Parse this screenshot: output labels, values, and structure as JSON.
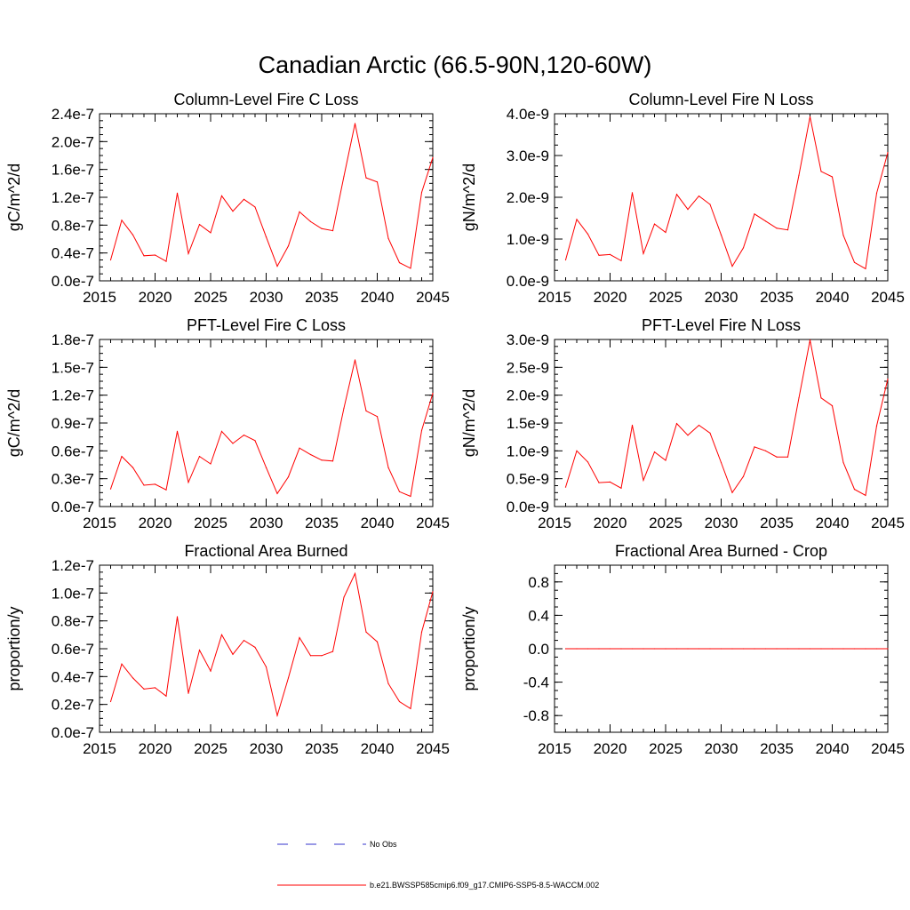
{
  "main_title": "Canadian Arctic (66.5-90N,120-60W)",
  "colors": {
    "series": "#ff0000",
    "no_obs": "#3333cc",
    "axis": "#000000"
  },
  "legend": {
    "no_obs_label": "No Obs",
    "series_label": "b.e21.BWSSP585cmip6.f09_g17.CMIP6-SSP5-8.5-WACCM.002"
  },
  "chart_data": [
    {
      "type": "line",
      "title": "Column-Level Fire C Loss",
      "ylabel": "gC/m^2/d",
      "xlabel": "",
      "xlim": [
        2015,
        2045
      ],
      "x_ticks": [
        2015,
        2020,
        2025,
        2030,
        2035,
        2040,
        2045
      ],
      "x_tick_labels": [
        "2015",
        "2020",
        "2025",
        "2030",
        "2035",
        "2040",
        "2045"
      ],
      "ylim": [
        0,
        2.4e-07
      ],
      "y_ticks": [
        0,
        4e-08,
        8e-08,
        1.2e-07,
        1.6e-07,
        2e-07,
        2.4e-07
      ],
      "y_tick_labels": [
        "0.0e-7",
        "0.4e-7",
        "0.8e-7",
        "1.2e-7",
        "1.6e-7",
        "2.0e-7",
        "2.4e-7"
      ],
      "x": [
        2016,
        2017,
        2018,
        2019,
        2020,
        2021,
        2022,
        2023,
        2024,
        2025,
        2026,
        2027,
        2028,
        2029,
        2030,
        2031,
        2032,
        2033,
        2034,
        2035,
        2036,
        2037,
        2038,
        2039,
        2040,
        2041,
        2042,
        2043,
        2044,
        2045
      ],
      "series": [
        {
          "name": "b.e21.BWSSP585cmip6.f09_g17.CMIP6-SSP5-8.5-WACCM.002",
          "values": [
            3e-08,
            8.7e-08,
            6.6e-08,
            3.6e-08,
            3.7e-08,
            2.8e-08,
            1.26e-07,
            3.9e-08,
            8.1e-08,
            6.9e-08,
            1.22e-07,
            1e-07,
            1.17e-07,
            1.06e-07,
            6.3e-08,
            2.1e-08,
            5e-08,
            9.9e-08,
            8.5e-08,
            7.5e-08,
            7.2e-08,
            1.5e-07,
            2.26e-07,
            1.48e-07,
            1.42e-07,
            6.1e-08,
            2.6e-08,
            1.8e-08,
            1.27e-07,
            1.77e-07
          ]
        }
      ]
    },
    {
      "type": "line",
      "title": "Column-Level Fire N Loss",
      "ylabel": "gN/m^2/d",
      "xlabel": "",
      "xlim": [
        2015,
        2045
      ],
      "x_ticks": [
        2015,
        2020,
        2025,
        2030,
        2035,
        2040,
        2045
      ],
      "x_tick_labels": [
        "2015",
        "2020",
        "2025",
        "2030",
        "2035",
        "2040",
        "2045"
      ],
      "ylim": [
        0,
        4e-09
      ],
      "y_ticks": [
        0,
        1e-09,
        2e-09,
        3e-09,
        4e-09
      ],
      "y_tick_labels": [
        "0.0e-9",
        "1.0e-9",
        "2.0e-9",
        "3.0e-9",
        "4.0e-9"
      ],
      "x": [
        2016,
        2017,
        2018,
        2019,
        2020,
        2021,
        2022,
        2023,
        2024,
        2025,
        2026,
        2027,
        2028,
        2029,
        2030,
        2031,
        2032,
        2033,
        2034,
        2035,
        2036,
        2037,
        2038,
        2039,
        2040,
        2041,
        2042,
        2043,
        2044,
        2045
      ],
      "series": [
        {
          "name": "b.e21.BWSSP585cmip6.f09_g17.CMIP6-SSP5-8.5-WACCM.002",
          "values": [
            5e-10,
            1.47e-09,
            1.12e-09,
            6.1e-10,
            6.3e-10,
            4.8e-10,
            2.11e-09,
            6.5e-10,
            1.36e-09,
            1.16e-09,
            2.07e-09,
            1.71e-09,
            2.03e-09,
            1.83e-09,
            1.1e-09,
            3.5e-10,
            7.9e-10,
            1.6e-09,
            1.43e-09,
            1.26e-09,
            1.22e-09,
            2.53e-09,
            3.93e-09,
            2.62e-09,
            2.49e-09,
            1.09e-09,
            4.4e-10,
            2.9e-10,
            2.1e-09,
            3.07e-09
          ]
        }
      ]
    },
    {
      "type": "line",
      "title": "PFT-Level Fire C Loss",
      "ylabel": "gC/m^2/d",
      "xlabel": "",
      "xlim": [
        2015,
        2045
      ],
      "x_ticks": [
        2015,
        2020,
        2025,
        2030,
        2035,
        2040,
        2045
      ],
      "x_tick_labels": [
        "2015",
        "2020",
        "2025",
        "2030",
        "2035",
        "2040",
        "2045"
      ],
      "ylim": [
        0,
        1.8e-07
      ],
      "y_ticks": [
        0,
        3e-08,
        6e-08,
        9e-08,
        1.2e-07,
        1.5e-07,
        1.8e-07
      ],
      "y_tick_labels": [
        "0.0e-7",
        "0.3e-7",
        "0.6e-7",
        "0.9e-7",
        "1.2e-7",
        "1.5e-7",
        "1.8e-7"
      ],
      "x": [
        2016,
        2017,
        2018,
        2019,
        2020,
        2021,
        2022,
        2023,
        2024,
        2025,
        2026,
        2027,
        2028,
        2029,
        2030,
        2031,
        2032,
        2033,
        2034,
        2035,
        2036,
        2037,
        2038,
        2039,
        2040,
        2041,
        2042,
        2043,
        2044,
        2045
      ],
      "series": [
        {
          "name": "b.e21.BWSSP585cmip6.f09_g17.CMIP6-SSP5-8.5-WACCM.002",
          "values": [
            1.9e-08,
            5.4e-08,
            4.2e-08,
            2.3e-08,
            2.4e-08,
            1.8e-08,
            8.1e-08,
            2.6e-08,
            5.4e-08,
            4.6e-08,
            8.1e-08,
            6.8e-08,
            7.7e-08,
            7.1e-08,
            4.2e-08,
            1.4e-08,
            3.2e-08,
            6.3e-08,
            5.6e-08,
            5e-08,
            4.9e-08,
            1.06e-07,
            1.58e-07,
            1.03e-07,
            9.7e-08,
            4.2e-08,
            1.6e-08,
            1.1e-08,
            8.2e-08,
            1.22e-07
          ]
        }
      ]
    },
    {
      "type": "line",
      "title": "PFT-Level Fire N Loss",
      "ylabel": "gN/m^2/d",
      "xlabel": "",
      "xlim": [
        2015,
        2045
      ],
      "x_ticks": [
        2015,
        2020,
        2025,
        2030,
        2035,
        2040,
        2045
      ],
      "x_tick_labels": [
        "2015",
        "2020",
        "2025",
        "2030",
        "2035",
        "2040",
        "2045"
      ],
      "ylim": [
        0,
        3e-09
      ],
      "y_ticks": [
        0,
        5e-10,
        1e-09,
        1.5e-09,
        2e-09,
        2.5e-09,
        3e-09
      ],
      "y_tick_labels": [
        "0.0e-9",
        "0.5e-9",
        "1.0e-9",
        "1.5e-9",
        "2.0e-9",
        "2.5e-9",
        "3.0e-9"
      ],
      "x": [
        2016,
        2017,
        2018,
        2019,
        2020,
        2021,
        2022,
        2023,
        2024,
        2025,
        2026,
        2027,
        2028,
        2029,
        2030,
        2031,
        2032,
        2033,
        2034,
        2035,
        2036,
        2037,
        2038,
        2039,
        2040,
        2041,
        2042,
        2043,
        2044,
        2045
      ],
      "series": [
        {
          "name": "b.e21.BWSSP585cmip6.f09_g17.CMIP6-SSP5-8.5-WACCM.002",
          "values": [
            3.5e-10,
            1e-09,
            8e-10,
            4.3e-10,
            4.4e-10,
            3.3e-10,
            1.46e-09,
            4.7e-10,
            9.8e-10,
            8.3e-10,
            1.49e-09,
            1.28e-09,
            1.46e-09,
            1.32e-09,
            7.9e-10,
            2.5e-10,
            5.4e-10,
            1.07e-09,
            1e-09,
            8.9e-10,
            8.9e-10,
            1.95e-09,
            2.99e-09,
            1.95e-09,
            1.81e-09,
            7.9e-10,
            3.1e-10,
            2e-10,
            1.45e-09,
            2.29e-09
          ]
        }
      ]
    },
    {
      "type": "line",
      "title": "Fractional Area Burned",
      "ylabel": "proportion/y",
      "xlabel": "",
      "xlim": [
        2015,
        2045
      ],
      "x_ticks": [
        2015,
        2020,
        2025,
        2030,
        2035,
        2040,
        2045
      ],
      "x_tick_labels": [
        "2015",
        "2020",
        "2025",
        "2030",
        "2035",
        "2040",
        "2045"
      ],
      "ylim": [
        0,
        1.2e-07
      ],
      "y_ticks": [
        0,
        2e-08,
        4e-08,
        6e-08,
        8e-08,
        1e-07,
        1.2e-07
      ],
      "y_tick_labels": [
        "0.0e-7",
        "0.2e-7",
        "0.4e-7",
        "0.6e-7",
        "0.8e-7",
        "1.0e-7",
        "1.2e-7"
      ],
      "x": [
        2016,
        2017,
        2018,
        2019,
        2020,
        2021,
        2022,
        2023,
        2024,
        2025,
        2026,
        2027,
        2028,
        2029,
        2030,
        2031,
        2032,
        2033,
        2034,
        2035,
        2036,
        2037,
        2038,
        2039,
        2040,
        2041,
        2042,
        2043,
        2044,
        2045
      ],
      "series": [
        {
          "name": "b.e21.BWSSP585cmip6.f09_g17.CMIP6-SSP5-8.5-WACCM.002",
          "values": [
            2.2e-08,
            4.9e-08,
            3.9e-08,
            3.1e-08,
            3.2e-08,
            2.6e-08,
            8.3e-08,
            2.8e-08,
            5.9e-08,
            4.4e-08,
            7e-08,
            5.6e-08,
            6.6e-08,
            6.1e-08,
            4.7e-08,
            1.2e-08,
            3.9e-08,
            6.8e-08,
            5.5e-08,
            5.5e-08,
            5.8e-08,
            9.7e-08,
            1.14e-07,
            7.2e-08,
            6.5e-08,
            3.5e-08,
            2.2e-08,
            1.7e-08,
            7.2e-08,
            1.01e-07
          ]
        }
      ]
    },
    {
      "type": "line",
      "title": "Fractional Area Burned - Crop",
      "ylabel": "proportion/y",
      "xlabel": "",
      "xlim": [
        2015,
        2045
      ],
      "x_ticks": [
        2015,
        2020,
        2025,
        2030,
        2035,
        2040,
        2045
      ],
      "x_tick_labels": [
        "2015",
        "2020",
        "2025",
        "2030",
        "2035",
        "2040",
        "2045"
      ],
      "ylim": [
        -1.0,
        1.0
      ],
      "y_ticks": [
        -0.8,
        -0.4,
        0.0,
        0.4,
        0.8
      ],
      "y_tick_labels": [
        "-0.8",
        "-0.4",
        "0.0",
        "0.4",
        "0.8"
      ],
      "x": [
        2016,
        2017,
        2018,
        2019,
        2020,
        2021,
        2022,
        2023,
        2024,
        2025,
        2026,
        2027,
        2028,
        2029,
        2030,
        2031,
        2032,
        2033,
        2034,
        2035,
        2036,
        2037,
        2038,
        2039,
        2040,
        2041,
        2042,
        2043,
        2044,
        2045
      ],
      "series": [
        {
          "name": "b.e21.BWSSP585cmip6.f09_g17.CMIP6-SSP5-8.5-WACCM.002",
          "values": [
            0,
            0,
            0,
            0,
            0,
            0,
            0,
            0,
            0,
            0,
            0,
            0,
            0,
            0,
            0,
            0,
            0,
            0,
            0,
            0,
            0,
            0,
            0,
            0,
            0,
            0,
            0,
            0,
            0,
            0
          ]
        }
      ]
    }
  ]
}
